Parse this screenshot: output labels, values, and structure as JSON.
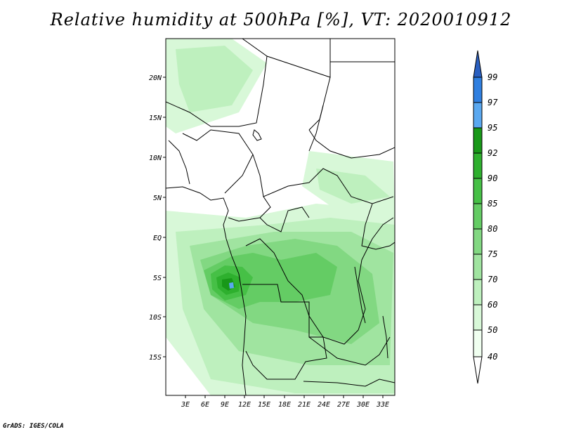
{
  "title": "Relative humidity at 500hPa [%], VT: 2020010912",
  "credit": "GrADS: IGES/COLA",
  "map": {
    "lat_labels": [
      "20N",
      "15N",
      "10N",
      "5N",
      "EQ",
      "5S",
      "10S",
      "15S"
    ],
    "lon_labels": [
      "3E",
      "6E",
      "9E",
      "12E",
      "15E",
      "18E",
      "21E",
      "24E",
      "27E",
      "30E",
      "33E"
    ]
  },
  "colorbar": {
    "levels": [
      "99",
      "97",
      "95",
      "92",
      "90",
      "85",
      "80",
      "75",
      "70",
      "60",
      "50",
      "40"
    ],
    "colors": [
      "#2a5fc0",
      "#2f7fe0",
      "#5aa8f0",
      "#189818",
      "#2eb02e",
      "#46c046",
      "#64cc64",
      "#82d882",
      "#a0e4a0",
      "#bef0be",
      "#d8f8d8",
      "#f0fff0",
      "#ffffff"
    ]
  }
}
